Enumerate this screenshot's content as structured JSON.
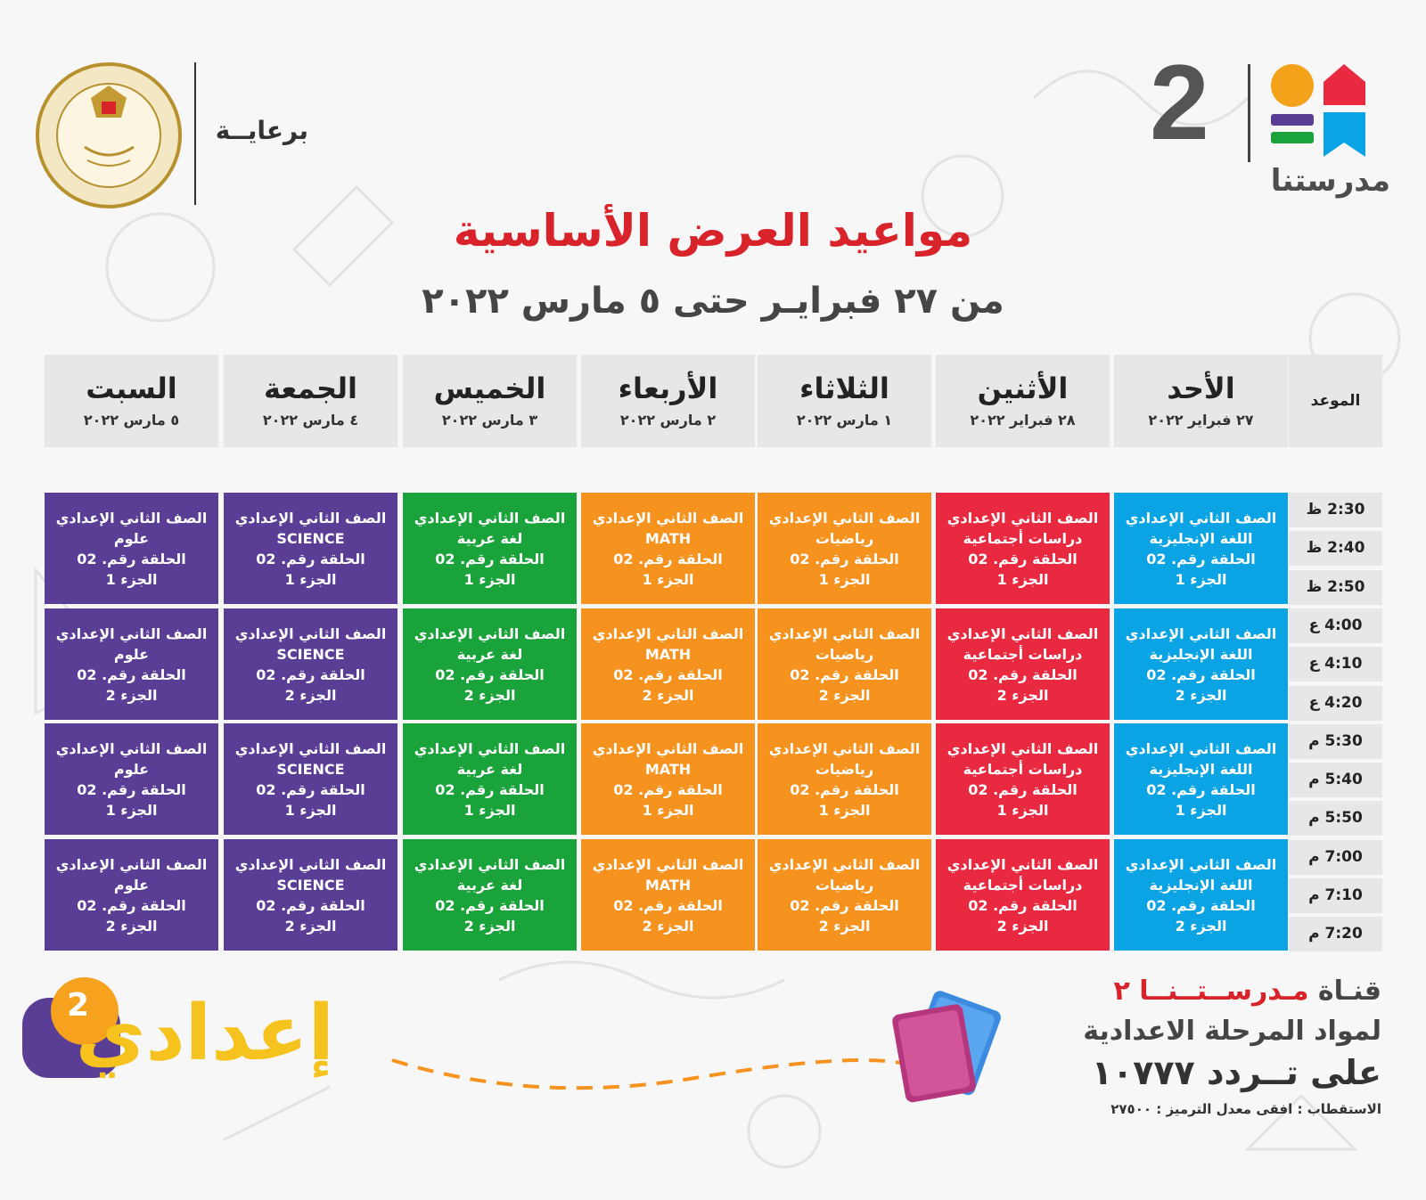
{
  "brand": {
    "number": "2",
    "name": "مدرستنا"
  },
  "sponsor": {
    "label": "برعايــة",
    "seal_text": "MINISTRY OF EDUCATION AND TECHNICAL EDUCATION"
  },
  "title": "مواعيد العرض الأساسية",
  "subtitle": "من ٢٧ فبرايـر حتى ٥ مارس ٢٠٢٢",
  "table": {
    "time_header": "الموعد",
    "days": [
      {
        "name": "الأحد",
        "date": "٢٧ فبراير ٢٠٢٢"
      },
      {
        "name": "الأثنين",
        "date": "٢٨ فبراير ٢٠٢٢"
      },
      {
        "name": "الثلاثاء",
        "date": "١ مارس ٢٠٢٢"
      },
      {
        "name": "الأربعاء",
        "date": "٢ مارس ٢٠٢٢"
      },
      {
        "name": "الخميس",
        "date": "٣ مارس ٢٠٢٢"
      },
      {
        "name": "الجمعة",
        "date": "٤ مارس ٢٠٢٢"
      },
      {
        "name": "السبت",
        "date": "٥ مارس ٢٠٢٢"
      }
    ],
    "times": [
      "2:30 ظ",
      "2:40 ظ",
      "2:50 ظ",
      "4:00 ع",
      "4:10 ع",
      "4:20 ع",
      "5:30 م",
      "5:40 م",
      "5:50 م",
      "7:00 م",
      "7:10 م",
      "7:20 م"
    ],
    "grade": "الصف الثاني الإعدادي",
    "episode": "الحلقة رقم. 02",
    "parts": [
      "الجزء 1",
      "الجزء 2",
      "الجزء 1",
      "الجزء 2"
    ],
    "subjects": [
      "اللغة الإنجليزية",
      "دراسات أجتماعية",
      "رياضيات",
      "MATH",
      "لغة عربية",
      "SCIENCE",
      "علوم"
    ],
    "colors": [
      "#0aa3e3",
      "#e8293f",
      "#f6921e",
      "#f6921e",
      "#1aa33a",
      "#5a3e96",
      "#5a3e96"
    ]
  },
  "footer": {
    "channel_prefix": "قنـاة",
    "channel_name": "مـدرســتــنــا ٢",
    "line2": "لمواد المرحلة الاعدادية",
    "line3": "على تــردد ١٠٧٧٧",
    "line4": "الاستقطاب : افقى معدل الترميز : ٢٧٥٠٠",
    "badge_word": "إعدادي",
    "badge_number": "2"
  }
}
